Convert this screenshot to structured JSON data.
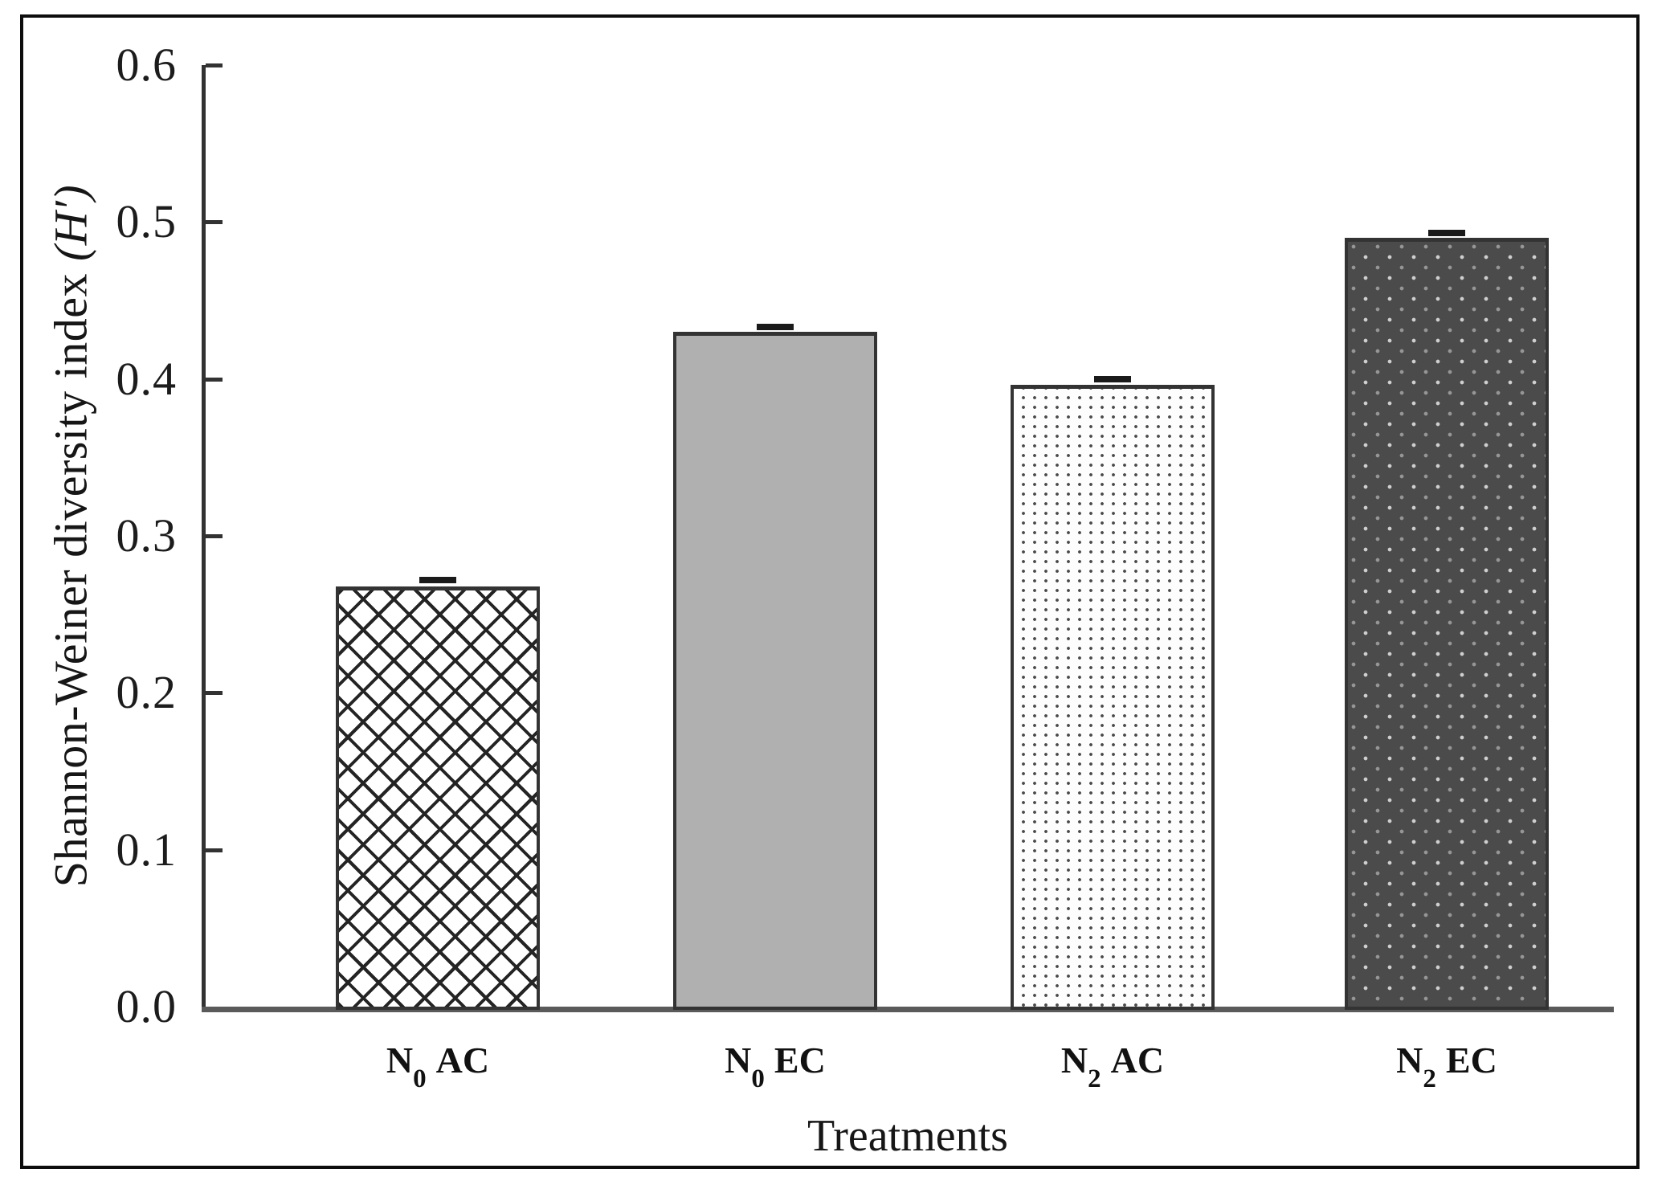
{
  "figure": {
    "background": "#ffffff",
    "border_color": "#0d0d0d"
  },
  "chart_data": {
    "type": "bar",
    "title": "",
    "xlabel": "Treatments",
    "ylabel_text": "Shannon-Weiner diversity index ",
    "ylabel_math": "(H′)",
    "categories": [
      {
        "base": "N",
        "sub": "0",
        "rest": "AC",
        "plain": "N0 AC"
      },
      {
        "base": "N",
        "sub": "0",
        "rest": "EC",
        "plain": "N0 EC"
      },
      {
        "base": "N",
        "sub": "2",
        "rest": "AC",
        "plain": "N2 AC"
      },
      {
        "base": "N",
        "sub": "2",
        "rest": "EC",
        "plain": "N2 EC"
      }
    ],
    "values": [
      0.268,
      0.43,
      0.396,
      0.49
    ],
    "errors": [
      0.003,
      0.002,
      0.003,
      0.002
    ],
    "ylim": [
      0,
      0.6
    ],
    "ytick_values": [
      0.0,
      0.1,
      0.2,
      0.3,
      0.4,
      0.5,
      0.6
    ],
    "ytick_labels": [
      "0.0",
      "0.1",
      "0.2",
      "0.3",
      "0.4",
      "0.5",
      "0.6"
    ],
    "grid": false,
    "legend": "none",
    "bar_patterns": [
      "crosshatch-white",
      "solid-gray",
      "dotted-white",
      "dotted-dark"
    ],
    "style_colors": {
      "solid_gray_fill": "#b0b0b0",
      "dark_fill": "#4b4b4b",
      "pattern_ink": "#242424",
      "light_dot": "#cfcfcf",
      "axis": "#323232",
      "baseline": "#5a5a5a"
    }
  }
}
